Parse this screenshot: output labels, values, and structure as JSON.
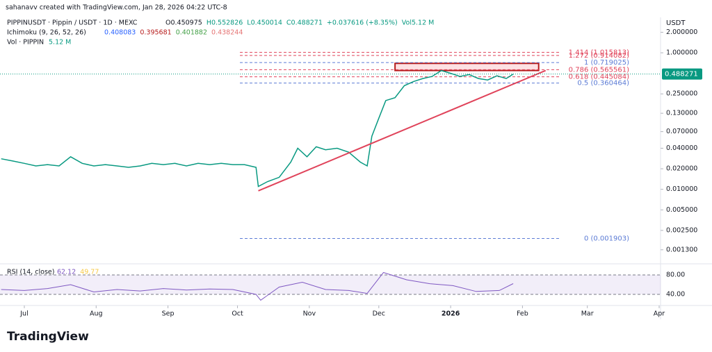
{
  "chart_data": {
    "type": "line",
    "credit": "sahanavv created with TradingView.com, Jan 28, 2026 04:22 UTC-8",
    "symbol": "PIPPINUSDT · Pippin / USDT · 1D · MEXC",
    "ohlc": [
      "O0.450975",
      "H0.552826",
      "L0.450014",
      "C0.488271",
      "+0.037616 (+8.35%)",
      "Vol5.12 M"
    ],
    "ichimoku": {
      "name": "Ichimoku (9, 26, 52, 26)",
      "values": [
        "0.408083",
        "0.395681",
        "0.401882",
        "0.438244"
      ],
      "colors": [
        "#2962ff",
        "#b71c1c",
        "#43a047",
        "#e57373"
      ]
    },
    "volume_label": [
      "Vol · PIPPIN",
      "5.12 M"
    ],
    "currency": "USDT",
    "logo": "TradingView",
    "log_scale": true,
    "last_price": 0.488271,
    "series": [
      {
        "name": "PIPPINUSDT",
        "color": "#089981",
        "x": [
          -10,
          -5,
          0,
          5,
          10,
          15,
          20,
          25,
          30,
          35,
          40,
          45,
          50,
          55,
          60,
          65,
          70,
          75,
          80,
          85,
          90,
          95,
          100,
          101,
          105,
          110,
          115,
          118,
          122,
          126,
          130,
          135,
          140,
          145,
          148,
          150,
          153,
          156,
          160,
          164,
          168,
          172,
          176,
          180,
          184,
          188,
          192,
          196,
          200,
          204,
          208,
          211
        ],
        "values": [
          0.028,
          0.026,
          0.024,
          0.022,
          0.023,
          0.022,
          0.03,
          0.024,
          0.022,
          0.023,
          0.022,
          0.021,
          0.022,
          0.024,
          0.023,
          0.024,
          0.022,
          0.024,
          0.023,
          0.024,
          0.023,
          0.023,
          0.021,
          0.011,
          0.013,
          0.015,
          0.025,
          0.04,
          0.03,
          0.042,
          0.038,
          0.04,
          0.035,
          0.025,
          0.022,
          0.06,
          0.11,
          0.2,
          0.22,
          0.33,
          0.38,
          0.42,
          0.45,
          0.55,
          0.5,
          0.45,
          0.48,
          0.42,
          0.4,
          0.46,
          0.42,
          0.488271
        ]
      }
    ],
    "trendline": {
      "color": "#e0435a",
      "x": [
        101,
        225
      ],
      "values": [
        0.0095,
        0.55
      ]
    },
    "zone": {
      "color": "#b71c1c",
      "x": [
        160,
        222
      ],
      "values": [
        0.55,
        0.7
      ]
    },
    "fib_levels": [
      {
        "value": 1.015813,
        "label": "1.414 (1.015813)",
        "color": "#e0435a"
      },
      {
        "value": 0.914082,
        "label": "1.272 (0.914082)",
        "color": "#e0435a"
      },
      {
        "value": 0.719025,
        "label": "1 (0.719025)",
        "color": "#5b7bd5"
      },
      {
        "value": 0.565561,
        "label": "0.786 (0.565561)",
        "color": "#e0435a"
      },
      {
        "value": 0.445084,
        "label": "0.618 (0.445084)",
        "color": "#e0435a"
      },
      {
        "value": 0.360464,
        "label": "0.5 (0.360464)",
        "color": "#5b7bd5"
      },
      {
        "value": 0.001903,
        "label": "0 (0.001903)",
        "color": "#5b7bd5"
      }
    ],
    "xlim": [
      -10.5,
      274.6
    ],
    "xticks": [
      {
        "value": 0,
        "label": "Jul"
      },
      {
        "value": 31,
        "label": "Aug"
      },
      {
        "value": 62,
        "label": "Sep"
      },
      {
        "value": 92,
        "label": "Oct"
      },
      {
        "value": 123,
        "label": "Nov"
      },
      {
        "value": 153,
        "label": "Dec"
      },
      {
        "value": 184,
        "label": "2026"
      },
      {
        "value": 215,
        "label": "Feb"
      },
      {
        "value": 243,
        "label": "Mar"
      },
      {
        "value": 274,
        "label": "Apr"
      }
    ],
    "ylim": [
      0.00091,
      2.94
    ],
    "yticks": [
      {
        "value": 2,
        "label": "2.000000"
      },
      {
        "value": 1,
        "label": "1.000000"
      },
      {
        "value": 0.25,
        "label": "0.250000"
      },
      {
        "value": 0.13,
        "label": "0.130000"
      },
      {
        "value": 0.07,
        "label": "0.070000"
      },
      {
        "value": 0.04,
        "label": "0.040000"
      },
      {
        "value": 0.02,
        "label": "0.020000"
      },
      {
        "value": 0.01,
        "label": "0.010000"
      },
      {
        "value": 0.005,
        "label": "0.005000"
      },
      {
        "value": 0.0025,
        "label": "0.002500"
      },
      {
        "value": 0.0013,
        "label": "0.001300"
      }
    ],
    "rsi": {
      "name": "RSI (14, close)",
      "readings": [
        "62.12",
        "49.77"
      ],
      "color": "#7e57c2",
      "x": [
        -10,
        0,
        10,
        20,
        30,
        40,
        50,
        60,
        70,
        80,
        90,
        100,
        102,
        110,
        120,
        130,
        140,
        148,
        155,
        165,
        175,
        185,
        195,
        205,
        211
      ],
      "values": [
        50,
        48,
        52,
        60,
        45,
        50,
        47,
        52,
        49,
        51,
        50,
        40,
        28,
        55,
        65,
        50,
        48,
        42,
        85,
        70,
        62,
        58,
        46,
        48,
        62.12
      ],
      "ylim": [
        24.3,
        95.7
      ],
      "yticks": [
        {
          "value": 80,
          "label": "80.00"
        },
        {
          "value": 40,
          "label": "40.00"
        }
      ]
    }
  }
}
